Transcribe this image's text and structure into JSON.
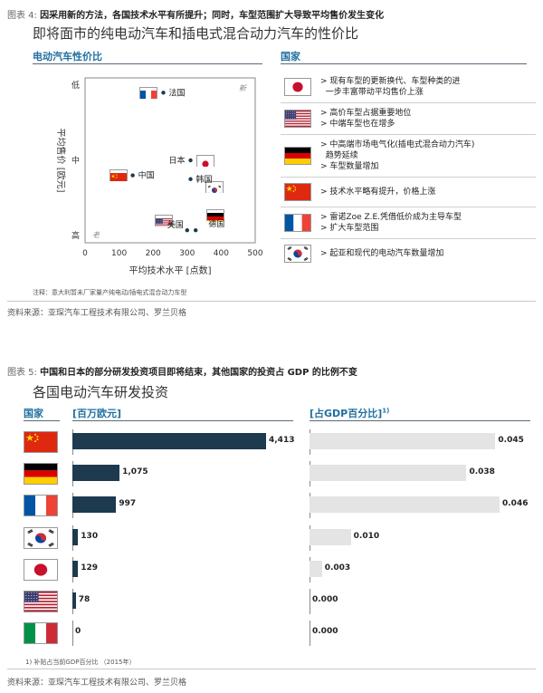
{
  "figure4": {
    "label_prefix": "图表 4:",
    "caption": "因采用新的方法，各国技术水平有所提升；同时，车型范围扩大导致平均售价发生变化",
    "subtitle": "即将面市的纯电动汽车和插电式混合动力汽车的性价比",
    "left_header": "电动汽车性价比",
    "right_header": "国家",
    "note": "注释：意大利暂未厂家量产纯电动/插电式混合动力车型",
    "source": "资料来源：亚琛汽车工程技术有限公司、罗兰贝格",
    "corner_new": "新",
    "corner_old": "老"
  },
  "figure5": {
    "label_prefix": "图表 5:",
    "caption": "中国和日本的部分研发投资项目即将结束，其他国家的投资占 GDP 的比例不变",
    "subtitle": "各国电动汽车研发投资",
    "col_country": "国家",
    "col_value": "[百万欧元]",
    "col_gdp": "[占GDP百分比]",
    "col_gdp_sup": "1)",
    "footnote": "1)  补贴占当前GDP百分比 （2015年）",
    "source": "资料来源：亚琛汽车工程技术有限公司、罗兰贝格"
  },
  "colors": {
    "bar": "#1d3a4e",
    "gdp_bar": "#e4e4e4",
    "accent": "#1f6fa0"
  },
  "chart_data": [
    {
      "type": "scatter",
      "title": "电动汽车性价比",
      "xlabel": "平均技术水平 [点数]",
      "ylabel": "平均售价 [欧元]",
      "xlim": [
        0,
        500
      ],
      "x_ticks": [
        "0",
        "100",
        "200",
        "300",
        "400",
        "500"
      ],
      "y_ticks": [
        "低",
        "中",
        "高"
      ],
      "y_categories": [
        "低",
        "中",
        "高"
      ],
      "points": [
        {
          "country": "法国",
          "flag": "fr",
          "x": 230,
          "y": 0.1
        },
        {
          "country": "日本",
          "flag": "jp",
          "x": 310,
          "y": 1.0
        },
        {
          "country": "中国",
          "flag": "cn",
          "x": 140,
          "y": 1.2
        },
        {
          "country": "韩国",
          "flag": "kr",
          "x": 310,
          "y": 1.25
        },
        {
          "country": "美国",
          "flag": "us",
          "x": 300,
          "y": 1.93
        },
        {
          "country": "德国",
          "flag": "de",
          "x": 325,
          "y": 1.93
        }
      ]
    },
    {
      "type": "bar",
      "title": "各国电动汽车研发投资",
      "ylabel": "[百万欧元]",
      "categories": [
        "cn",
        "de",
        "fr",
        "kr",
        "jp",
        "us",
        "it"
      ],
      "values": [
        4413,
        1075,
        997,
        130,
        129,
        78,
        0
      ],
      "value_labels": [
        "4,413",
        "1,075",
        "997",
        "130",
        "129",
        "78",
        "0"
      ]
    },
    {
      "type": "bar",
      "title": "[占GDP百分比]",
      "categories": [
        "cn",
        "de",
        "fr",
        "kr",
        "jp",
        "us",
        "it"
      ],
      "values": [
        0.045,
        0.038,
        0.046,
        0.01,
        0.003,
        0.0,
        0.0
      ],
      "value_labels": [
        "0.045",
        "0.038",
        "0.046",
        "0.010",
        "0.003",
        "0.000",
        "0.000"
      ]
    }
  ],
  "country_list": [
    {
      "flag": "jp",
      "lines": [
        "> 现有车型的更新换代、车型种类的进",
        "  一步丰富带动平均售价上涨"
      ]
    },
    {
      "flag": "us",
      "lines": [
        "> 高价车型占据重要地位",
        "> 中端车型也在增多"
      ]
    },
    {
      "flag": "de",
      "lines": [
        "> 中高端市场电气化(插电式混合动力汽车)",
        "  趋势延续",
        "> 车型数量增加"
      ]
    },
    {
      "flag": "cn",
      "lines": [
        "> 技术水平略有提升，价格上涨"
      ]
    },
    {
      "flag": "fr",
      "lines": [
        "> 雷诺Zoe Z.E.凭借低价成为主导车型",
        "> 扩大车型范围"
      ]
    },
    {
      "flag": "kr",
      "lines": [
        "> 起亚和现代的电动汽车数量增加"
      ]
    }
  ]
}
